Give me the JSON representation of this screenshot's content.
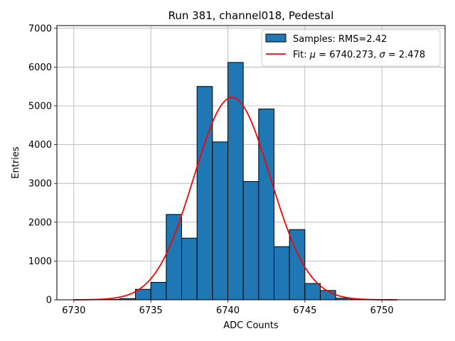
{
  "chart_data": {
    "type": "bar",
    "title": "Run 381, channel018, Pedestal",
    "xlabel": "ADC Counts",
    "ylabel": "Entries",
    "xlim": [
      6728.9,
      6754.1
    ],
    "ylim": [
      0,
      7070
    ],
    "xticks": [
      6730,
      6735,
      6740,
      6745,
      6750
    ],
    "yticks": [
      0,
      1000,
      2000,
      3000,
      4000,
      5000,
      6000,
      7000
    ],
    "grid": true,
    "legend_position": "top-right",
    "histogram": {
      "name": "Samples: RMS=2.42",
      "color": "#1f77b4",
      "edgecolor": "#000000",
      "bins": [
        {
          "x0": 6732.0,
          "x1": 6733.0,
          "value": 10
        },
        {
          "x0": 6733.0,
          "x1": 6734.0,
          "value": 30
        },
        {
          "x0": 6734.0,
          "x1": 6735.0,
          "value": 270
        },
        {
          "x0": 6735.0,
          "x1": 6736.0,
          "value": 450
        },
        {
          "x0": 6736.0,
          "x1": 6737.0,
          "value": 2200
        },
        {
          "x0": 6737.0,
          "x1": 6738.0,
          "value": 1590
        },
        {
          "x0": 6738.0,
          "x1": 6739.0,
          "value": 5500
        },
        {
          "x0": 6739.0,
          "x1": 6740.0,
          "value": 4070
        },
        {
          "x0": 6740.0,
          "x1": 6741.0,
          "value": 6120
        },
        {
          "x0": 6741.0,
          "x1": 6742.0,
          "value": 3050
        },
        {
          "x0": 6742.0,
          "x1": 6743.0,
          "value": 4920
        },
        {
          "x0": 6743.0,
          "x1": 6744.0,
          "value": 1370
        },
        {
          "x0": 6744.0,
          "x1": 6745.0,
          "value": 1810
        },
        {
          "x0": 6745.0,
          "x1": 6746.0,
          "value": 420
        },
        {
          "x0": 6746.0,
          "x1": 6747.0,
          "value": 240
        },
        {
          "x0": 6747.0,
          "x1": 6748.0,
          "value": 40
        },
        {
          "x0": 6748.0,
          "x1": 6749.0,
          "value": 10
        }
      ]
    },
    "fit": {
      "name": "Fit: μ = 6740.273, σ = 2.478",
      "legend_prefix": "Fit: ",
      "mu_symbol": "μ",
      "sigma_symbol": "σ",
      "mu_text": " = 6740.273, ",
      "sigma_text": " = 2.478",
      "color": "#ff0000",
      "mu": 6740.273,
      "sigma": 2.478,
      "amplitude": 5220,
      "x_range": [
        6730,
        6751
      ]
    }
  }
}
